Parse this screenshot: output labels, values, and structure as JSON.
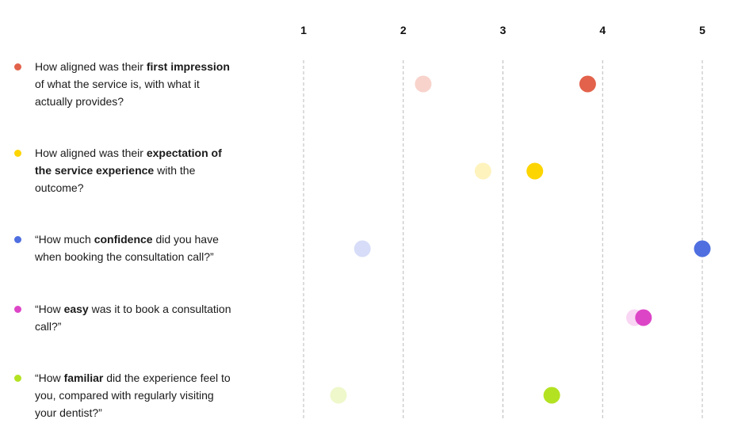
{
  "chart_data": {
    "type": "scatter",
    "title": "",
    "xlabel": "",
    "ylabel": "",
    "xlim": [
      1,
      5
    ],
    "x_ticks": [
      "1",
      "2",
      "3",
      "4",
      "5"
    ],
    "grid": "vertical dashed lines at each tick",
    "legend": "none",
    "questions": [
      {
        "color": "#E2624B",
        "faint_color": "#F8D3CC",
        "parts": [
          {
            "text": "How aligned was their ",
            "bold": false
          },
          {
            "text": "first impression",
            "bold": true
          },
          {
            "text": " of what the service is, with what it actually provides?",
            "bold": false
          }
        ],
        "values": [
          2.2,
          3.85
        ]
      },
      {
        "color": "#FDD500",
        "faint_color": "#FEF3BD",
        "parts": [
          {
            "text": "How aligned was their ",
            "bold": false
          },
          {
            "text": "expectation of the service experience",
            "bold": true
          },
          {
            "text": " with the outcome?",
            "bold": false
          }
        ],
        "values": [
          2.8,
          3.32
        ]
      },
      {
        "color": "#4F6FE0",
        "faint_color": "#D7DDF8",
        "parts": [
          {
            "text": "“How much ",
            "bold": false
          },
          {
            "text": "confidence",
            "bold": true
          },
          {
            "text": " did you have when booking the consultation call?”",
            "bold": false
          }
        ],
        "values": [
          1.59,
          5.0
        ]
      },
      {
        "color": "#DD45C7",
        "faint_color": "#F9D6F3",
        "parts": [
          {
            "text": "“How ",
            "bold": false
          },
          {
            "text": "easy",
            "bold": true
          },
          {
            "text": " was it to book a consultation call?”",
            "bold": false
          }
        ],
        "values": [
          4.32,
          4.41
        ]
      },
      {
        "color": "#B3E222",
        "faint_color": "#EEF8CB",
        "parts": [
          {
            "text": "“How ",
            "bold": false
          },
          {
            "text": "familiar",
            "bold": true
          },
          {
            "text": " did the experience feel to you, compared with regularly visiting your dentist?”",
            "bold": false
          }
        ],
        "values": [
          1.35,
          3.49
        ]
      }
    ]
  }
}
